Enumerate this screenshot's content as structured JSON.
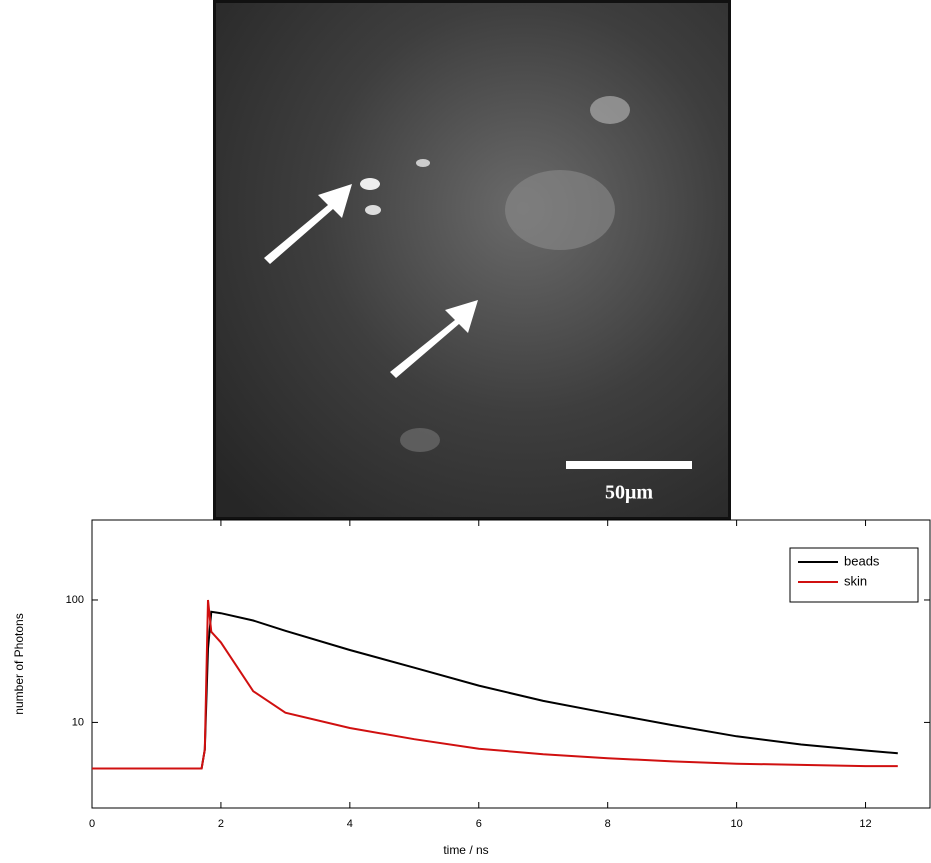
{
  "image": {
    "scale_bar_label": "50μm"
  },
  "chart_data": {
    "type": "line",
    "xlabel": "time / ns",
    "ylabel": "number of Photons",
    "x": [
      0,
      1.7,
      1.75,
      1.8,
      1.85,
      2,
      2.5,
      3,
      4,
      5,
      6,
      7,
      8,
      9,
      10,
      11,
      12,
      12.5
    ],
    "series": [
      {
        "name": "beads",
        "color": "#000000",
        "values": [
          4.2,
          4.2,
          6,
          40,
          80,
          78,
          68,
          56,
          39,
          28,
          20,
          15,
          11.9,
          9.5,
          7.7,
          6.6,
          5.9,
          5.6
        ]
      },
      {
        "name": "skin",
        "color": "#d01010",
        "values": [
          4.2,
          4.2,
          6,
          100,
          55,
          45,
          18,
          12,
          9,
          7.3,
          6.1,
          5.5,
          5.1,
          4.8,
          4.6,
          4.5,
          4.4,
          4.4
        ]
      }
    ],
    "xlim": [
      0,
      13
    ],
    "xticks": [
      0,
      2,
      4,
      6,
      8,
      10,
      12
    ],
    "ylim": [
      2,
      450
    ],
    "yticks": [
      10,
      100
    ],
    "log_y": true,
    "legend": "upper right"
  }
}
